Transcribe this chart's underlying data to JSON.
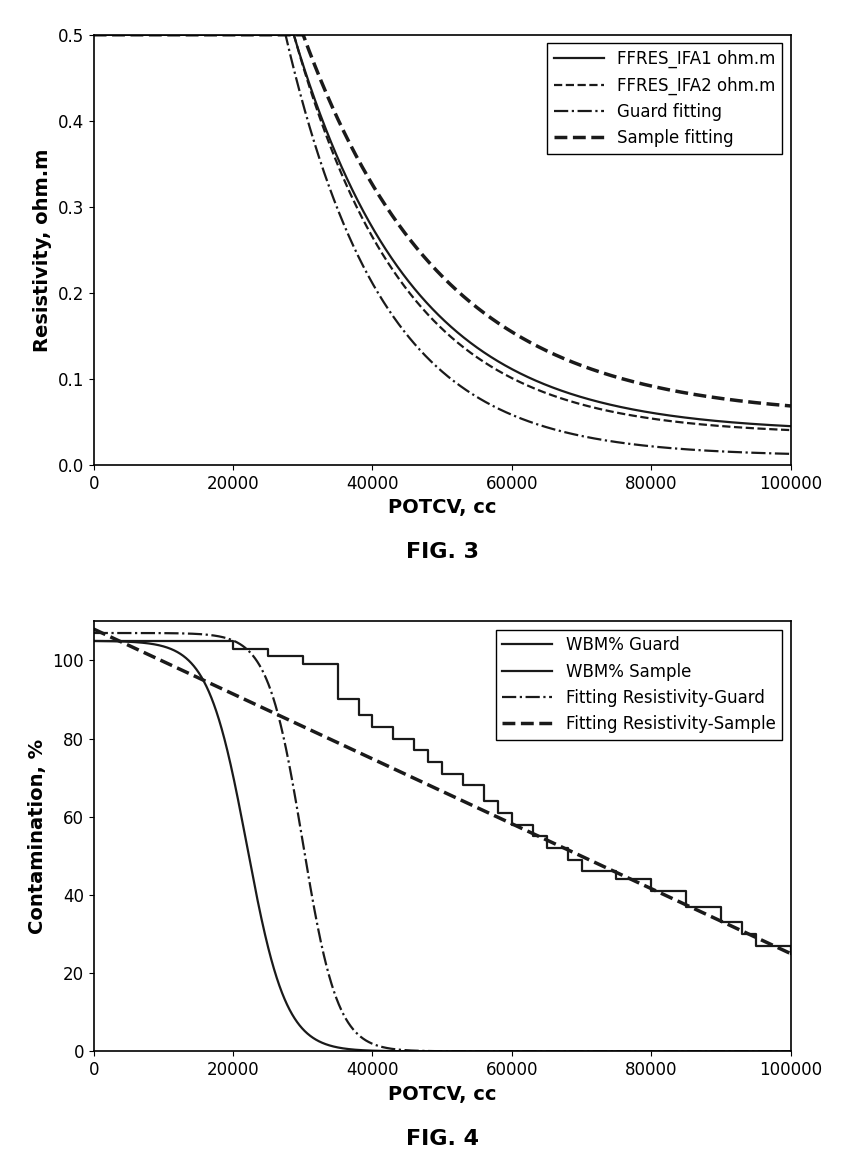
{
  "fig3": {
    "fig_label": "FIG. 3",
    "xlabel": "POTCV, cc",
    "ylabel": "Resistivity, ohm.m",
    "xlim": [
      0,
      100000
    ],
    "ylim": [
      0,
      0.5
    ],
    "yticks": [
      0,
      0.1,
      0.2,
      0.3,
      0.4,
      0.5
    ],
    "xticks": [
      0,
      20000,
      40000,
      60000,
      80000,
      100000
    ],
    "legend_labels": [
      "FFRES_IFA1 ohm.m",
      "FFRES_IFA2 ohm.m",
      "Guard fitting",
      "Sample fitting"
    ]
  },
  "fig4": {
    "fig_label": "FIG. 4",
    "xlabel": "POTCV, cc",
    "ylabel": "Contamination, %",
    "xlim": [
      0,
      100000
    ],
    "ylim": [
      0,
      110
    ],
    "yticks": [
      0,
      20,
      40,
      60,
      80,
      100
    ],
    "xticks": [
      0,
      20000,
      40000,
      60000,
      80000,
      100000
    ],
    "legend_labels": [
      "WBM% Guard",
      "WBM% Sample",
      "Fitting Resistivity-Guard",
      "Fitting Resistivity-Sample"
    ]
  },
  "line_color": "#1a1a1a",
  "background_color": "#ffffff",
  "label_fontsize": 14,
  "tick_fontsize": 12,
  "legend_fontsize": 12,
  "fig_label_fontsize": 16,
  "wbm_sample_x": [
    0,
    15000,
    20000,
    25000,
    30000,
    35000,
    38000,
    40000,
    43000,
    46000,
    48000,
    50000,
    53000,
    56000,
    58000,
    60000,
    63000,
    65000,
    68000,
    70000,
    75000,
    80000,
    85000,
    90000,
    93000,
    95000,
    100000
  ],
  "wbm_sample_y": [
    105,
    105,
    103,
    101,
    99,
    90,
    86,
    83,
    80,
    77,
    74,
    71,
    68,
    64,
    61,
    58,
    55,
    52,
    49,
    46,
    44,
    41,
    37,
    33,
    30,
    27,
    25
  ]
}
